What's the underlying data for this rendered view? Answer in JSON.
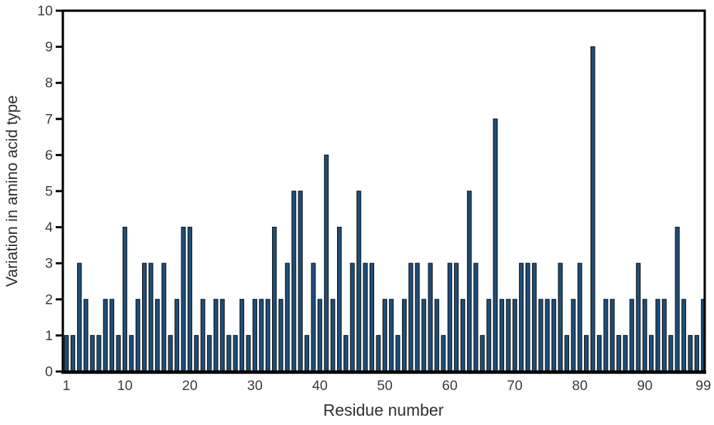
{
  "chart_data": {
    "type": "bar",
    "title": "",
    "xlabel": "Residue number",
    "ylabel": "Variation in amino acid type",
    "x_start": 1,
    "x_end": 99,
    "ylim": [
      0,
      10
    ],
    "xticks": [
      1,
      10,
      20,
      30,
      40,
      50,
      60,
      70,
      80,
      90,
      99
    ],
    "yticks": [
      0,
      1,
      2,
      3,
      4,
      5,
      6,
      7,
      8,
      9,
      10
    ],
    "grid": "off",
    "legend": "none",
    "categories_note": "residue numbers 1..99",
    "values": [
      1,
      1,
      3,
      2,
      1,
      1,
      2,
      2,
      1,
      4,
      1,
      2,
      3,
      3,
      2,
      3,
      1,
      2,
      4,
      4,
      1,
      2,
      1,
      2,
      2,
      1,
      1,
      2,
      1,
      2,
      2,
      2,
      4,
      2,
      3,
      5,
      5,
      1,
      3,
      2,
      6,
      2,
      4,
      1,
      3,
      5,
      3,
      3,
      1,
      2,
      2,
      1,
      2,
      3,
      3,
      2,
      3,
      2,
      1,
      3,
      3,
      2,
      5,
      3,
      1,
      2,
      7,
      2,
      2,
      2,
      3,
      3,
      3,
      2,
      2,
      2,
      3,
      1,
      2,
      3,
      1,
      9,
      1,
      2,
      2,
      1,
      1,
      2,
      3,
      2,
      1,
      2,
      2,
      1,
      4,
      2,
      1,
      1,
      2
    ],
    "colors": {
      "bar_fill": "#1f4e79",
      "bar_stroke": "#101418",
      "axis": "#000000",
      "tick_text": "#3a3a3a",
      "title_text": "#2f2f2f",
      "background": "#ffffff"
    }
  }
}
